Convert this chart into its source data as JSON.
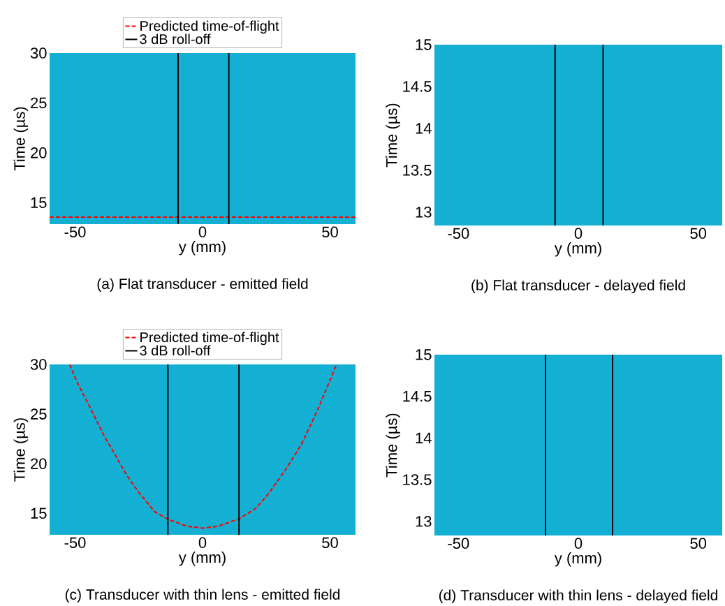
{
  "chart_data": [
    {
      "type": "line",
      "title": "(a)  Flat transducer - emitted field",
      "xlabel": "y (mm)",
      "ylabel": "Time (µs)",
      "xlim": [
        -60,
        60
      ],
      "ylim": [
        12.85,
        30
      ],
      "xticks": [
        -50,
        0,
        50
      ],
      "yticks": [
        15,
        20,
        25,
        30
      ],
      "legend": "top",
      "series": [
        {
          "name": "Predicted time-of-flight",
          "color": "#ff0000",
          "line_style": "dashed",
          "x": [
            -60,
            60
          ],
          "values": [
            13.55,
            13.55
          ]
        }
      ],
      "ref_lines": [
        {
          "axis": "x",
          "value": -9.6,
          "label": "3 dB roll-off",
          "color": "#000000"
        },
        {
          "axis": "x",
          "value": 10.3,
          "color": "#000000"
        }
      ],
      "bands": [
        {
          "axis": "y",
          "from": 12.85,
          "to": 30,
          "color": "#14b0d4"
        }
      ]
    },
    {
      "type": "line",
      "title": "(b)  Flat transducer - delayed field",
      "xlabel": "y (mm)",
      "ylabel": "Time (µs)",
      "xlim": [
        -60,
        60
      ],
      "ylim": [
        12.84,
        15
      ],
      "xticks": [
        -50,
        0,
        50
      ],
      "yticks": [
        13,
        13.5,
        14,
        14.5,
        15
      ],
      "ref_lines": [
        {
          "axis": "x",
          "value": -9.7,
          "color": "#000000"
        },
        {
          "axis": "x",
          "value": 10.3,
          "color": "#000000"
        }
      ],
      "bands": [
        {
          "axis": "y",
          "from": 12.84,
          "to": 15,
          "color": "#14b0d4"
        }
      ]
    },
    {
      "type": "line",
      "title": "(c)  Transducer with thin lens - emitted field",
      "xlabel": "y (mm)",
      "ylabel": "Time (µs)",
      "xlim": [
        -60,
        60
      ],
      "ylim": [
        12.84,
        30
      ],
      "xticks": [
        -50,
        0,
        50
      ],
      "yticks": [
        15,
        20,
        25,
        30
      ],
      "legend": "top",
      "series": [
        {
          "name": "Predicted time-of-flight",
          "color": "#ff0000",
          "line_style": "dashed",
          "x": [
            -52.1,
            -49.2,
            -44.6,
            -40.9,
            -38.2,
            -34.5,
            -29.9,
            -25.3,
            -20.8,
            -19.0,
            -13.6,
            -6.1,
            0,
            6.1,
            14.3,
            20.9,
            25.9,
            32.3,
            38.7,
            45.1,
            52.4
          ],
          "values": [
            30,
            28.2,
            25.9,
            24.0,
            22.6,
            21.0,
            18.9,
            17.2,
            15.8,
            15.2,
            14.4,
            13.7,
            13.5,
            13.7,
            14.45,
            15.5,
            17.0,
            19.3,
            21.9,
            25.4,
            29.9
          ]
        }
      ],
      "ref_lines": [
        {
          "axis": "x",
          "value": -13.6,
          "label": "3 dB roll-off",
          "color": "#000000"
        },
        {
          "axis": "x",
          "value": 14.3,
          "color": "#000000"
        }
      ],
      "bands": [
        {
          "axis": "y",
          "from": 12.84,
          "to": 30,
          "color": "#14b0d4"
        }
      ]
    },
    {
      "type": "line",
      "title": "(d)  Transducer with thin lens - delayed field",
      "xlabel": "y (mm)",
      "ylabel": "Time (µs)",
      "xlim": [
        -60,
        60
      ],
      "ylim": [
        12.83,
        15
      ],
      "xticks": [
        -50,
        0,
        50
      ],
      "yticks": [
        13,
        13.5,
        14,
        14.5,
        15
      ],
      "ref_lines": [
        {
          "axis": "x",
          "value": -13.7,
          "color": "#000000"
        },
        {
          "axis": "x",
          "value": 14.3,
          "color": "#000000"
        }
      ],
      "bands": [
        {
          "axis": "y",
          "from": 12.83,
          "to": 15,
          "color": "#14b0d4"
        }
      ]
    }
  ]
}
